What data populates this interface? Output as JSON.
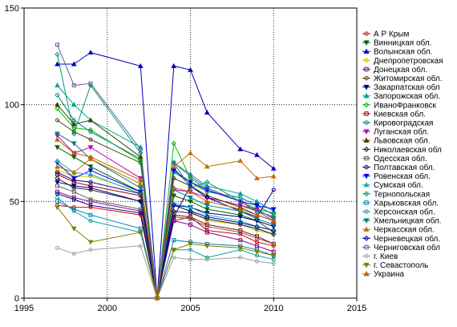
{
  "chart_data": {
    "type": "line",
    "title": "",
    "xlabel": "",
    "ylabel": "",
    "xlim": [
      1995,
      2015
    ],
    "ylim": [
      0,
      150
    ],
    "xticks": [
      1995,
      2000,
      2005,
      2010,
      2015
    ],
    "yticks": [
      0,
      50,
      100,
      150
    ],
    "grid": "dotted",
    "legend_position": "right",
    "x": [
      1997,
      1998,
      1999,
      2002,
      2003,
      2004,
      2005,
      2006,
      2008,
      2009,
      2010
    ],
    "series": [
      {
        "name": "А Р Крым",
        "color": "#e00000",
        "marker": "circle",
        "values": [
          48,
          47,
          47,
          43,
          0,
          40,
          42,
          35,
          33,
          29,
          27
        ]
      },
      {
        "name": "Винницкая обл.",
        "color": "#006400",
        "marker": "triangle-down",
        "values": [
          78,
          73,
          68,
          55,
          0,
          53,
          50,
          46,
          43,
          40,
          34
        ]
      },
      {
        "name": "Волынская обл.",
        "color": "#0000c0",
        "marker": "triangle",
        "values": [
          121,
          121,
          127,
          120,
          0,
          120,
          118,
          96,
          77,
          74,
          67
        ]
      },
      {
        "name": "Днепропетровская",
        "color": "#c8c800",
        "marker": "diamond",
        "values": [
          66,
          63,
          63,
          55,
          0,
          48,
          45,
          40,
          38,
          35,
          33
        ]
      },
      {
        "name": "Донецкая обл.",
        "color": "#800080",
        "marker": "square",
        "values": [
          55,
          52,
          50,
          45,
          0,
          40,
          38,
          34,
          30,
          27,
          24
        ]
      },
      {
        "name": "Житомирская обл.",
        "color": "#404000",
        "marker": "circle",
        "values": [
          92,
          86,
          82,
          70,
          0,
          62,
          58,
          52,
          48,
          45,
          42
        ]
      },
      {
        "name": "Закарпатская обл",
        "color": "#000080",
        "marker": "triangle-down",
        "values": [
          60,
          58,
          57,
          50,
          0,
          48,
          47,
          44,
          42,
          40,
          37
        ]
      },
      {
        "name": "Запорожская обл.",
        "color": "#00a0a0",
        "marker": "triangle",
        "values": [
          110,
          100,
          92,
          78,
          0,
          70,
          64,
          58,
          54,
          50,
          45
        ]
      },
      {
        "name": "ИваноФранковск",
        "color": "#00c000",
        "marker": "diamond",
        "values": [
          98,
          88,
          87,
          71,
          0,
          80,
          62,
          56,
          50,
          46,
          44
        ]
      },
      {
        "name": "Киевская обл.",
        "color": "#a00000",
        "marker": "square",
        "values": [
          64,
          60,
          58,
          53,
          0,
          43,
          42,
          38,
          35,
          32,
          28
        ]
      },
      {
        "name": "Кировоградская",
        "color": "#008080",
        "marker": "circle",
        "values": [
          105,
          92,
          86,
          72,
          0,
          65,
          60,
          55,
          52,
          48,
          43
        ]
      },
      {
        "name": "Луганская обл.",
        "color": "#c000c0",
        "marker": "triangle-down",
        "values": [
          84,
          75,
          78,
          62,
          0,
          56,
          55,
          52,
          48,
          46,
          41
        ]
      },
      {
        "name": "Львовская обл.",
        "color": "#404000",
        "marker": "triangle",
        "values": [
          100,
          90,
          92,
          73,
          0,
          67,
          58,
          53,
          47,
          43,
          40
        ]
      },
      {
        "name": "Николаевская обл",
        "color": "#202040",
        "marker": "diamond",
        "values": [
          62,
          57,
          56,
          50,
          0,
          45,
          44,
          41,
          38,
          36,
          33
        ]
      },
      {
        "name": "Одесская обл.",
        "color": "#606060",
        "marker": "square",
        "values": [
          58,
          55,
          51,
          46,
          0,
          42,
          41,
          37,
          34,
          31,
          28
        ]
      },
      {
        "name": "Полтавская обл.",
        "color": "#000080",
        "marker": "circle",
        "values": [
          54,
          51,
          48,
          44,
          0,
          42,
          58,
          52,
          45,
          42,
          56
        ]
      },
      {
        "name": "Ровенская обл.",
        "color": "#0000ff",
        "marker": "triangle-down",
        "values": [
          70,
          62,
          66,
          55,
          0,
          66,
          60,
          56,
          50,
          48,
          46
        ]
      },
      {
        "name": "Сумская обл.",
        "color": "#20b0b0",
        "marker": "triangle",
        "values": [
          71,
          65,
          64,
          54,
          0,
          49,
          47,
          43,
          40,
          37,
          35
        ]
      },
      {
        "name": "Тернопольская",
        "color": "#00a060",
        "marker": "diamond",
        "values": [
          126,
          85,
          110,
          75,
          0,
          70,
          57,
          60,
          50,
          45,
          42
        ]
      },
      {
        "name": "Харьковская обл.",
        "color": "#0080c0",
        "marker": "square",
        "values": [
          50,
          46,
          43,
          36,
          0,
          30,
          29,
          28,
          27,
          25,
          22
        ]
      },
      {
        "name": "Херсонская обл.",
        "color": "#00a0a0",
        "marker": "circle",
        "values": [
          52,
          45,
          40,
          34,
          0,
          25,
          25,
          21,
          25,
          22,
          20
        ]
      },
      {
        "name": "Хмельницкая обл.",
        "color": "#008080",
        "marker": "triangle-down",
        "values": [
          85,
          80,
          72,
          57,
          0,
          56,
          52,
          48,
          45,
          41,
          38
        ]
      },
      {
        "name": "Черкасская обл.",
        "color": "#c07000",
        "marker": "triangle",
        "values": [
          68,
          65,
          72,
          59,
          0,
          68,
          75,
          68,
          71,
          62,
          63
        ]
      },
      {
        "name": "Черневецкая обл.",
        "color": "#0000a0",
        "marker": "diamond",
        "values": [
          65,
          61,
          60,
          54,
          0,
          48,
          45,
          42,
          39,
          37,
          35
        ]
      },
      {
        "name": "Черниговская обл",
        "color": "#6060a0",
        "marker": "square",
        "values": [
          131,
          110,
          111,
          77,
          0,
          70,
          63,
          57,
          50,
          45,
          40
        ]
      },
      {
        "name": "г. Киев",
        "color": "#a0a0a0",
        "marker": "circle",
        "values": [
          26,
          23,
          25,
          27,
          0,
          21,
          20,
          20,
          21,
          19,
          18
        ]
      },
      {
        "name": "г. Севастополь",
        "color": "#808000",
        "marker": "triangle-down",
        "values": [
          47,
          36,
          29,
          34,
          0,
          25,
          28,
          27,
          26,
          24,
          22
        ]
      },
      {
        "name": "Украина",
        "color": "#c06000",
        "marker": "triangle",
        "values": [
          82,
          75,
          73,
          61,
          0,
          57,
          55,
          50,
          46,
          43,
          40
        ]
      }
    ]
  }
}
